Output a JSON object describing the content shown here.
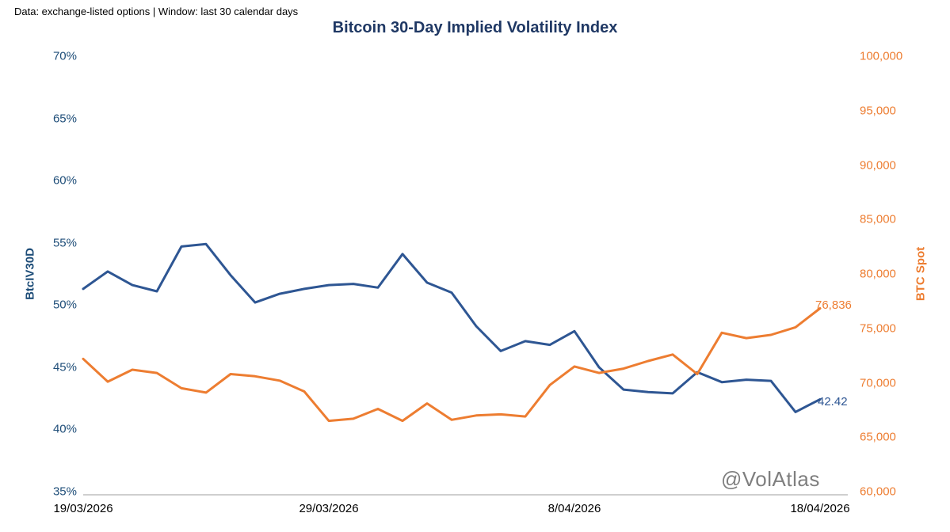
{
  "page": {
    "caption": "Data: exchange-listed options | Window: last 30 calendar days",
    "watermark": "@VolAtlas"
  },
  "chart": {
    "title": "Bitcoin 30-Day Implied Volatility Index",
    "colors": {
      "iv_line": "#2E5693",
      "spot_line": "#ED7D31",
      "title_text": "#1F3864",
      "left_tick_text": "#1F4E79",
      "right_tick_text": "#ED7D31",
      "axis_line": "#BFBFBF",
      "watermark_text": "#7F7F7F"
    },
    "left_axis": {
      "title": "BtcIV30D",
      "ticks": [
        "70%",
        "65%",
        "60%",
        "55%",
        "50%",
        "45%",
        "40%",
        "35%"
      ]
    },
    "right_axis": {
      "title": "BTC Spot",
      "ticks": [
        "100,000",
        "95,000",
        "90,000",
        "85,000",
        "80,000",
        "75,000",
        "70,000",
        "65,000",
        "60,000"
      ]
    },
    "x_axis": {
      "ticks": [
        "19/03/2026",
        "29/03/2026",
        "8/04/2026",
        "18/04/2026"
      ]
    },
    "end_labels": {
      "spot": "76,836",
      "iv": "42.42"
    }
  },
  "chart_data": {
    "type": "line",
    "title": "Bitcoin 30-Day Implied Volatility Index",
    "n_points": 31,
    "x_tick_labels": [
      "19/03/2026",
      "29/03/2026",
      "8/04/2026",
      "18/04/2026"
    ],
    "x_tick_indices": [
      0,
      10,
      20,
      30
    ],
    "left_axis_label": "BtcIV30D",
    "right_axis_label": "BTC Spot",
    "left_axis_range": [
      35,
      70
    ],
    "right_axis_range": [
      60000,
      100000
    ],
    "grid": false,
    "legend": "none",
    "series": [
      {
        "name": "BtcIV30D",
        "axis": "left",
        "unit": "%",
        "color": "#2E5693",
        "values": [
          51.3,
          52.7,
          51.6,
          51.1,
          54.7,
          54.9,
          52.4,
          50.2,
          50.9,
          51.3,
          51.6,
          51.7,
          51.4,
          54.1,
          51.8,
          51.0,
          48.3,
          46.3,
          47.1,
          46.8,
          47.9,
          45.0,
          43.2,
          43.0,
          42.9,
          44.6,
          43.8,
          44.0,
          43.9,
          41.4,
          42.42
        ]
      },
      {
        "name": "BTC Spot",
        "axis": "right",
        "unit": "USD",
        "color": "#ED7D31",
        "values": [
          72200,
          70100,
          71200,
          70900,
          69500,
          69100,
          70800,
          70600,
          70200,
          69200,
          66500,
          66700,
          67600,
          66500,
          68100,
          66600,
          67000,
          67100,
          66900,
          69800,
          71500,
          70900,
          71300,
          72000,
          72600,
          70800,
          74600,
          74100,
          74400,
          75100,
          76836
        ]
      }
    ],
    "annotations": [
      {
        "series": "BTC Spot",
        "point": "last",
        "label": "76,836"
      },
      {
        "series": "BtcIV30D",
        "point": "last",
        "label": "42.42"
      }
    ]
  }
}
